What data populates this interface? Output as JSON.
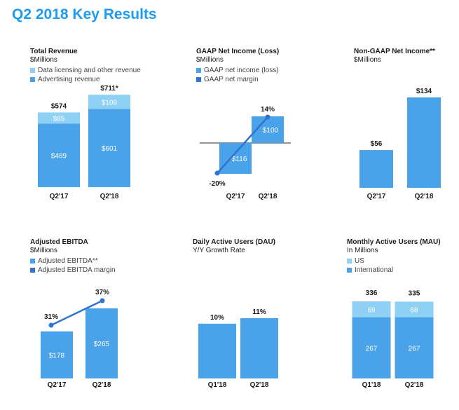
{
  "page_title": "Q2 2018 Key Results",
  "colors": {
    "light_blue": "#8fd0f5",
    "bar_blue": "#4aa3e8",
    "dark_blue": "#2f74d0",
    "title_blue": "#1d9bf0"
  },
  "chart_data": [
    {
      "id": "total-revenue",
      "type": "bar",
      "stacked": true,
      "title": "Total Revenue",
      "subtitle": "$Millions",
      "categories": [
        "Q2'17",
        "Q2'18"
      ],
      "series": [
        {
          "name": "Advertising revenue",
          "values": [
            489,
            601
          ],
          "labels": [
            "$489",
            "$601"
          ],
          "color": "#4aa3e8"
        },
        {
          "name": "Data licensing and other revenue",
          "values": [
            85,
            109
          ],
          "labels": [
            "$85",
            "$109"
          ],
          "color": "#8fd0f5"
        }
      ],
      "legend": [
        {
          "label": "Data licensing and other revenue",
          "color": "#8fd0f5"
        },
        {
          "label": "Advertising revenue",
          "color": "#4aa3e8"
        }
      ],
      "totals": [
        "$574",
        "$711*"
      ],
      "ylim": [
        0,
        711
      ]
    },
    {
      "id": "gaap-net-income",
      "type": "bar",
      "title": "GAAP Net Income (Loss)",
      "subtitle": "$Millions",
      "categories": [
        "Q2'17",
        "Q2'18"
      ],
      "series": [
        {
          "name": "GAAP net income (loss)",
          "values": [
            -116,
            100
          ],
          "labels": [
            "-$116",
            "$100"
          ],
          "color": "#4aa3e8"
        },
        {
          "name": "GAAP net margin",
          "type": "line",
          "values": [
            -20,
            14
          ],
          "labels": [
            "-20%",
            "14%"
          ],
          "color": "#2f74d0"
        }
      ],
      "legend": [
        {
          "label": "GAAP net income (loss)",
          "color": "#4aa3e8"
        },
        {
          "label": "GAAP net margin",
          "color": "#2f74d0"
        }
      ],
      "ylim": [
        -116,
        100
      ],
      "margin_ylim": [
        -20,
        14
      ]
    },
    {
      "id": "non-gaap-net-income",
      "type": "bar",
      "title": "Non-GAAP Net Income**",
      "subtitle": "$Millions",
      "categories": [
        "Q2'17",
        "Q2'18"
      ],
      "series": [
        {
          "values": [
            56,
            134
          ],
          "labels": [
            "$56",
            "$134"
          ],
          "color": "#4aa3e8"
        }
      ],
      "legend": [],
      "ylim": [
        0,
        134
      ]
    },
    {
      "id": "adjusted-ebitda",
      "type": "bar",
      "title": "Adjusted EBITDA",
      "subtitle": "$Millions",
      "categories": [
        "Q2'17",
        "Q2'18"
      ],
      "series": [
        {
          "name": "Adjusted EBITDA**",
          "values": [
            178,
            265
          ],
          "labels": [
            "$178",
            "$265"
          ],
          "color": "#4aa3e8"
        },
        {
          "name": "Adjusted EBITDA margin",
          "type": "line",
          "values": [
            31,
            37
          ],
          "labels": [
            "31%",
            "37%"
          ],
          "color": "#2f74d0"
        }
      ],
      "legend": [
        {
          "label": "Adjusted EBITDA**",
          "color": "#4aa3e8"
        },
        {
          "label": "Adjusted EBITDA margin",
          "color": "#2f74d0"
        }
      ],
      "ylim": [
        0,
        265
      ],
      "margin_ylim": [
        31,
        37
      ]
    },
    {
      "id": "dau",
      "type": "bar",
      "title": "Daily Active Users (DAU)",
      "subtitle": "Y/Y Growth Rate",
      "categories": [
        "Q1'18",
        "Q2'18"
      ],
      "series": [
        {
          "values": [
            10,
            11
          ],
          "labels": [
            "10%",
            "11%"
          ],
          "color": "#4aa3e8"
        }
      ],
      "legend": [],
      "ylim": [
        0,
        11
      ]
    },
    {
      "id": "mau",
      "type": "bar",
      "stacked": true,
      "title": "Monthly Active Users (MAU)",
      "subtitle": "In Millions",
      "categories": [
        "Q1'18",
        "Q2'18"
      ],
      "series": [
        {
          "name": "International",
          "values": [
            267,
            267
          ],
          "labels": [
            "267",
            "267"
          ],
          "color": "#4aa3e8"
        },
        {
          "name": "US",
          "values": [
            69,
            68
          ],
          "labels": [
            "69",
            "68"
          ],
          "color": "#8fd0f5"
        }
      ],
      "legend": [
        {
          "label": "US",
          "color": "#8fd0f5"
        },
        {
          "label": "International",
          "color": "#4aa3e8"
        }
      ],
      "totals": [
        "336",
        "335"
      ],
      "ylim": [
        0,
        336
      ]
    }
  ]
}
